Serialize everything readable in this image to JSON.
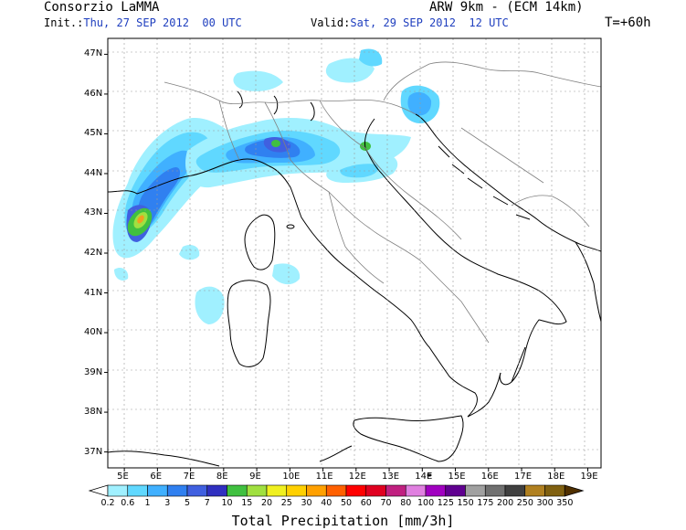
{
  "header": {
    "org": "Consorzio LaMMA",
    "model": "ARW 9km - (ECM 14km)",
    "init_label": "Init.:",
    "init_value": "Thu, 27 SEP 2012  00 UTC",
    "valid_label": "Valid:",
    "valid_value": "Sat, 29 SEP 2012  12 UTC",
    "forecast_step": "T=+60h"
  },
  "map": {
    "lat_labels": [
      "47N",
      "46N",
      "45N",
      "44N",
      "43N",
      "42N",
      "41N",
      "40N",
      "39N",
      "38N",
      "37N"
    ],
    "lon_labels": [
      "5E",
      "6E",
      "7E",
      "8E",
      "9E",
      "10E",
      "11E",
      "12E",
      "13E",
      "14E",
      "15E",
      "16E",
      "17E",
      "18E",
      "19E"
    ],
    "lat_range": [
      36.6,
      47.4
    ],
    "lon_range": [
      4.5,
      19.4
    ]
  },
  "legend": {
    "title": "Total Precipitation [mm/3h]",
    "values": [
      "0.2",
      "0.6",
      "1",
      "3",
      "5",
      "7",
      "10",
      "15",
      "20",
      "25",
      "30",
      "40",
      "50",
      "60",
      "70",
      "80",
      "100",
      "125",
      "150",
      "175",
      "200",
      "250",
      "300",
      "350"
    ],
    "colors": [
      "#ffffff",
      "#a0f0ff",
      "#60d8ff",
      "#40b0ff",
      "#3080f0",
      "#4060e0",
      "#3030c0",
      "#40c040",
      "#a0e040",
      "#f0f020",
      "#ffd000",
      "#ffa000",
      "#ff6000",
      "#ff0000",
      "#e00020",
      "#c02080",
      "#e080e0",
      "#a000c0",
      "#600090",
      "#a0a0a0",
      "#707070",
      "#404040",
      "#b08020",
      "#806010",
      "#503000"
    ]
  }
}
